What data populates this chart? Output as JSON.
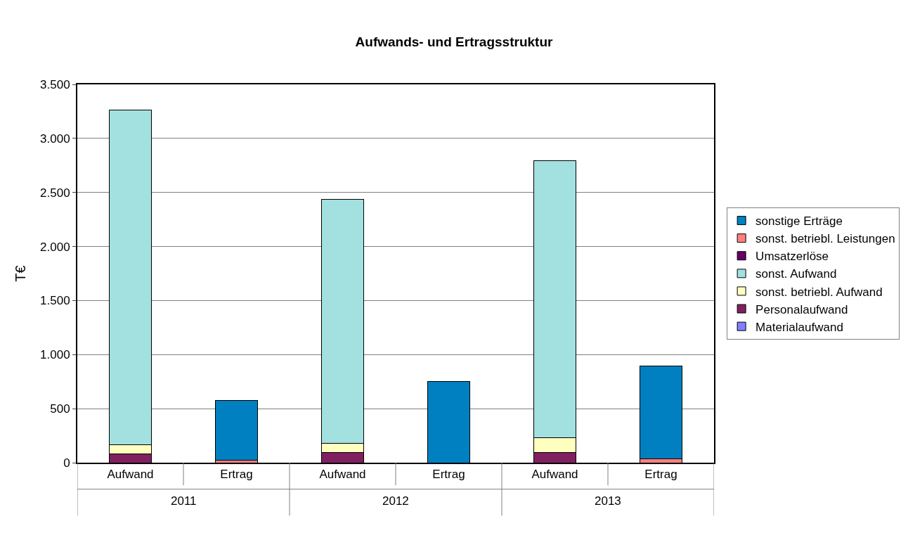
{
  "chart_data": {
    "type": "bar",
    "title": "Aufwands- und Ertragsstruktur",
    "ylabel": "T€",
    "stacked": true,
    "grid": "y",
    "legend": "right",
    "categories": [
      "Aufwand",
      "Ertrag",
      "Aufwand",
      "Ertrag",
      "Aufwand",
      "Ertrag"
    ],
    "annotations": [
      "2011",
      "2012",
      "2013"
    ],
    "ylim": [
      0,
      3500
    ],
    "yticks": [
      {
        "value": 0,
        "label": "0"
      },
      {
        "value": 500,
        "label": "500"
      },
      {
        "value": 1000,
        "label": "1.000"
      },
      {
        "value": 1500,
        "label": "1.500"
      },
      {
        "value": 2000,
        "label": "2.000"
      },
      {
        "value": 2500,
        "label": "2.500"
      },
      {
        "value": 3000,
        "label": "3.000"
      },
      {
        "value": 3500,
        "label": "3.500"
      }
    ],
    "series": [
      {
        "name": "Materialaufwand",
        "color": "#8080ff",
        "values": [
          0,
          null,
          0,
          null,
          0,
          null
        ]
      },
      {
        "name": "Personalaufwand",
        "color": "#802060",
        "values": [
          82,
          null,
          95,
          null,
          97,
          null
        ]
      },
      {
        "name": "sonst. betriebl. Aufwand",
        "color": "#ffffc0",
        "values": [
          81,
          null,
          85,
          null,
          134,
          null
        ]
      },
      {
        "name": "sonst. Aufwand",
        "color": "#a3e0e0",
        "values": [
          3100,
          null,
          2255,
          null,
          2565,
          null
        ]
      },
      {
        "name": "Umsatzerlöse",
        "color": "#660066",
        "values": [
          null,
          0,
          null,
          0,
          null,
          0
        ]
      },
      {
        "name": "sonst. betriebl. Leistungen",
        "color": "#ff8080",
        "values": [
          null,
          20,
          null,
          null,
          null,
          35
        ]
      },
      {
        "name": "sonstige Erträge",
        "color": "#0080c0",
        "values": [
          null,
          555,
          null,
          750,
          null,
          862
        ]
      }
    ]
  }
}
